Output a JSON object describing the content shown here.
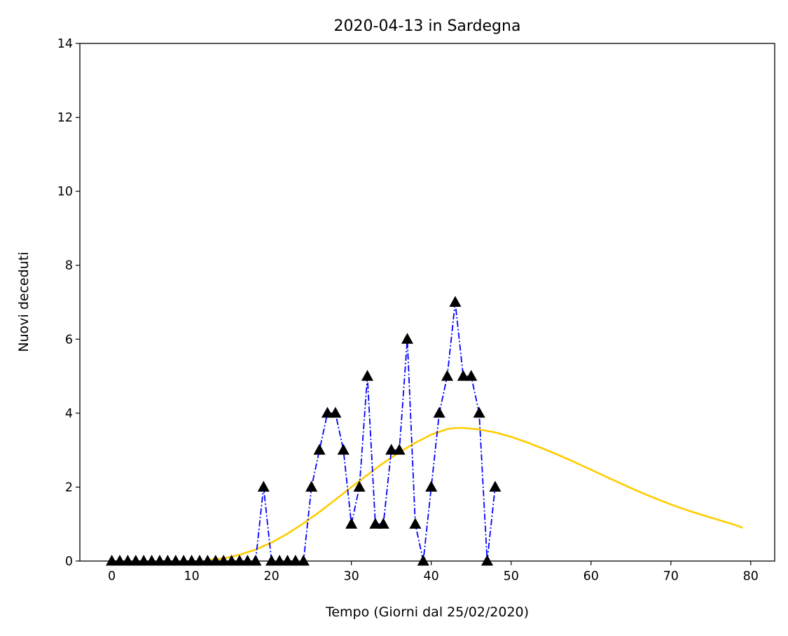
{
  "chart_data": {
    "type": "line",
    "title": "2020-04-13 in Sardegna",
    "xlabel": "Tempo (Giorni dal 25/02/2020)",
    "ylabel": "Nuovi deceduti",
    "xlim": [
      -4,
      83
    ],
    "ylim": [
      0,
      14
    ],
    "xticks": [
      0,
      10,
      20,
      30,
      40,
      50,
      60,
      70,
      80
    ],
    "yticks": [
      0,
      2,
      4,
      6,
      8,
      10,
      12,
      14
    ],
    "grid": false,
    "legend": "none",
    "series": [
      {
        "style": "dash-dot line with triangle markers",
        "line_color": "#0000ff",
        "marker_color": "#000000",
        "x": [
          0,
          1,
          2,
          3,
          4,
          5,
          6,
          7,
          8,
          9,
          10,
          11,
          12,
          13,
          14,
          15,
          16,
          17,
          18,
          19,
          20,
          21,
          22,
          23,
          24,
          25,
          26,
          27,
          28,
          29,
          30,
          31,
          32,
          33,
          34,
          35,
          36,
          37,
          38,
          39,
          40,
          41,
          42,
          43,
          44,
          45,
          46,
          47,
          48
        ],
        "values": [
          0,
          0,
          0,
          0,
          0,
          0,
          0,
          0,
          0,
          0,
          0,
          0,
          0,
          0,
          0,
          0,
          0,
          0,
          0,
          2,
          0,
          0,
          0,
          0,
          0,
          2,
          3,
          4,
          4,
          3,
          1,
          2,
          5,
          1,
          1,
          3,
          3,
          6,
          1,
          0,
          2,
          4,
          5,
          7,
          5,
          5,
          4,
          0,
          2
        ]
      },
      {
        "style": "smooth fitted curve",
        "line_color": "#ffcc00",
        "x": [
          12,
          14,
          16,
          18,
          20,
          22,
          24,
          26,
          28,
          30,
          32,
          34,
          36,
          38,
          40,
          42,
          43,
          44,
          46,
          48,
          50,
          52,
          54,
          56,
          58,
          60,
          62,
          64,
          66,
          68,
          70,
          72,
          74,
          76,
          78,
          79
        ],
        "values": [
          0.02,
          0.07,
          0.17,
          0.31,
          0.5,
          0.74,
          1.02,
          1.33,
          1.66,
          2.0,
          2.33,
          2.65,
          2.94,
          3.2,
          3.42,
          3.57,
          3.6,
          3.6,
          3.56,
          3.48,
          3.36,
          3.21,
          3.04,
          2.86,
          2.67,
          2.47,
          2.27,
          2.07,
          1.88,
          1.7,
          1.53,
          1.38,
          1.24,
          1.11,
          0.98,
          0.9
        ]
      }
    ]
  }
}
